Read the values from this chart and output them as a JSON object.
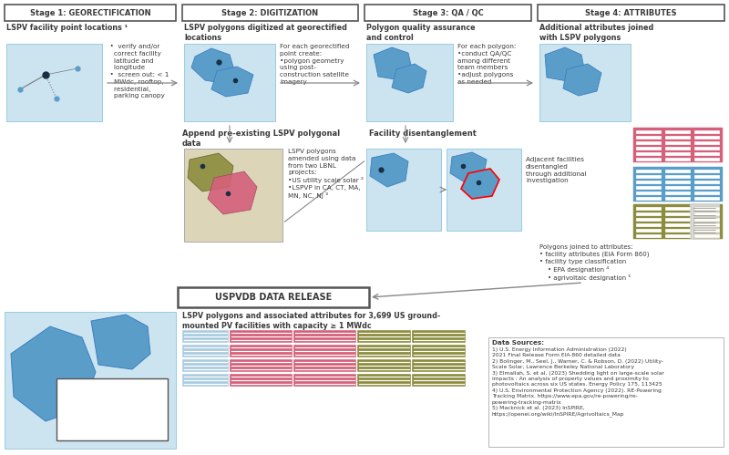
{
  "bg_color": "#ffffff",
  "light_blue": "#cce4f0",
  "blue_poly": "#5b9dc9",
  "dark_dot": "#1a2e45",
  "pink": "#d4607a",
  "olive": "#8b8c3e",
  "text_dark": "#3a3a3a",
  "arrow_col": "#888888",
  "pink_table": "#d4607a",
  "blue_table": "#5b9dc9",
  "olive_table": "#8b8c3e",
  "stage1_title": "Stage 1: GEORECTIFICATION",
  "stage2_title": "Stage 2: DIGITIZATION",
  "stage3_title": "Stage 3: QA / QC",
  "stage4_title": "Stage 4: ATTRIBUTES",
  "stage1_sub": "LSPV facility point locations ¹",
  "stage2_sub": "LSPV polygons digitized at georectified\nlocations",
  "stage3_sub": "Polygon quality assurance\nand control",
  "stage4_sub": "Additional attributes joined\nwith LSPV polygons",
  "stage1_desc": "  •  verify and/or\n    correct facility\n    latitude and\n    longitude\n  •  screen out: < 1\n    MWdc, rooftop,\n    residential,\n    parking canopy",
  "stage2_desc": "For each georectified\npoint create:\n•polygon geometry\nusing post-\nconstruction satellite\nimagery",
  "stage3_desc": "For each polygon:\n•conduct QA/QC\namong different\nteam members\n•adjust polygons\nas needed",
  "stage4_desc": "Polygons joined to attributes:\n• facility attributes (EIA Form 860)\n• facility type classification\n    • EPA designation ⁴\n    • agrivoltaic designation ⁵",
  "append_title": "Append pre-existing LSPV polygonal\ndata",
  "append_desc": "LSPV polygons\namended using data\nfrom two LBNL\nprojects:\n•US utility scale solar ²\n•LSPVP in CA, CT, MA,\nMN, NC, NJ ³",
  "disentangle_title": "Facility disentanglement",
  "disentangle_desc": "Adjacent facilities\ndisentangled\nthrough additional\ninvestigation",
  "release_title": "USPVDB DATA RELEASE",
  "release_desc": "LSPV polygons and associated attributes for 3,699 US ground-\nmounted PV facilities with capacity ≥ 1 MWdc",
  "ds_title": "Data Sources:",
  "ds_text": "1) U.S. Energy Information Administration (2022)\n2021 Final Release Form EIA-860 detailed data\n2) Bolinger, M., Seel, J., Warner, C. & Robson, D. (2022) Utility-\nScale Solar, Lawrence Berkeley National Laboratory\n3) Elmallah, S. et al. (2023) Shedding light on large-scale solar\nimpacts : An analysis of property values and proximity to\nphotovoltaics across six US states. Energy Policy 175, 113425\n4) U.S. Environmental Protection Agency (2022). RE-Powering\nTracking Matrix. https://www.epa.gov/re-powering/re-\npowering-tracking-matrix\n5) Macknick et al. (2023) InSPIRE,\nhttps://openei.org/wiki/InSPIRE/Agrivoltaics_Map"
}
